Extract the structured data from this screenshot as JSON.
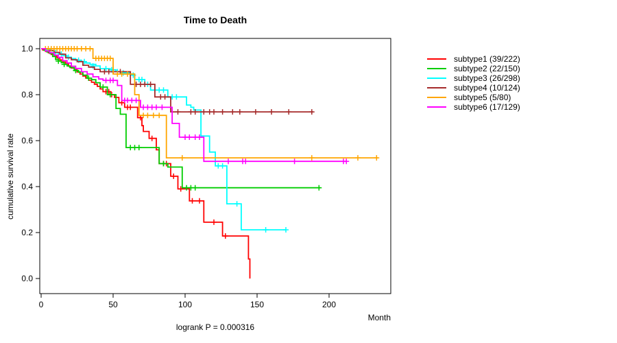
{
  "window": {
    "background": "#FFFFFF",
    "text_color": "#000000"
  },
  "chart_data": {
    "type": "line",
    "subtype": "kaplan-meier-survival-steps",
    "title": "Time to Death",
    "xlabel": "Month",
    "ylabel": "cumulative survival rate",
    "annotation": "logrank P = 0.000316",
    "grid": "off",
    "legend_position": "right-outside",
    "xlim": [
      0,
      243
    ],
    "ylim": [
      0.0,
      1.0
    ],
    "x_ticks": [
      0,
      50,
      100,
      150,
      200
    ],
    "x_tick_labels": [
      "0",
      "50",
      "100",
      "150",
      "200"
    ],
    "y_ticks": [
      1.0,
      0.8,
      0.6,
      0.4,
      0.2,
      0.0
    ],
    "y_tick_labels": [
      "1.0",
      "0.8",
      "0.6",
      "0.4",
      "0.2",
      "0.0"
    ],
    "series": [
      {
        "name": "subtype1 (39/222)",
        "color": "#FF0000",
        "end_month": 145,
        "steps": [
          [
            0,
            1.0
          ],
          [
            1,
            0.995
          ],
          [
            3,
            0.988
          ],
          [
            5,
            0.982
          ],
          [
            7,
            0.975
          ],
          [
            9,
            0.968
          ],
          [
            11,
            0.96
          ],
          [
            13,
            0.951
          ],
          [
            15,
            0.942
          ],
          [
            17,
            0.933
          ],
          [
            19,
            0.924
          ],
          [
            21,
            0.916
          ],
          [
            23,
            0.908
          ],
          [
            25,
            0.899
          ],
          [
            27,
            0.89
          ],
          [
            29,
            0.881
          ],
          [
            31,
            0.872
          ],
          [
            33,
            0.863
          ],
          [
            35,
            0.854
          ],
          [
            37,
            0.845
          ],
          [
            39,
            0.836
          ],
          [
            41,
            0.825
          ],
          [
            43,
            0.813
          ],
          [
            48,
            0.8
          ],
          [
            51,
            0.788
          ],
          [
            54,
            0.765
          ],
          [
            58,
            0.745
          ],
          [
            67,
            0.7
          ],
          [
            70,
            0.665
          ],
          [
            71,
            0.64
          ],
          [
            75,
            0.61
          ],
          [
            80,
            0.56
          ],
          [
            82,
            0.5
          ],
          [
            90,
            0.445
          ],
          [
            95,
            0.39
          ],
          [
            103,
            0.338
          ],
          [
            113,
            0.245
          ],
          [
            126,
            0.185
          ],
          [
            144,
            0.085
          ],
          [
            145,
            0.0
          ]
        ],
        "censors": [
          [
            45,
            0.813
          ],
          [
            47,
            0.813
          ],
          [
            49,
            0.8
          ],
          [
            56,
            0.765
          ],
          [
            60,
            0.745
          ],
          [
            62,
            0.745
          ],
          [
            69,
            0.7
          ],
          [
            77,
            0.61
          ],
          [
            85,
            0.5
          ],
          [
            87,
            0.5
          ],
          [
            92,
            0.445
          ],
          [
            97,
            0.39
          ],
          [
            105,
            0.338
          ],
          [
            110,
            0.338
          ],
          [
            120,
            0.245
          ],
          [
            128,
            0.185
          ]
        ]
      },
      {
        "name": "subtype2 (22/150)",
        "color": "#00CD00",
        "end_month": 194,
        "steps": [
          [
            0,
            1.0
          ],
          [
            2,
            0.993
          ],
          [
            4,
            0.986
          ],
          [
            6,
            0.979
          ],
          [
            8,
            0.966
          ],
          [
            10,
            0.953
          ],
          [
            12,
            0.946
          ],
          [
            14,
            0.939
          ],
          [
            16,
            0.932
          ],
          [
            18,
            0.925
          ],
          [
            20,
            0.918
          ],
          [
            23,
            0.905
          ],
          [
            26,
            0.898
          ],
          [
            29,
            0.885
          ],
          [
            32,
            0.872
          ],
          [
            35,
            0.865
          ],
          [
            38,
            0.852
          ],
          [
            41,
            0.833
          ],
          [
            46,
            0.8
          ],
          [
            52,
            0.74
          ],
          [
            55,
            0.715
          ],
          [
            59,
            0.57
          ],
          [
            82,
            0.5
          ],
          [
            88,
            0.485
          ],
          [
            98,
            0.395
          ]
        ],
        "censors": [
          [
            12,
            0.946
          ],
          [
            16,
            0.932
          ],
          [
            24,
            0.905
          ],
          [
            33,
            0.872
          ],
          [
            43,
            0.833
          ],
          [
            48,
            0.8
          ],
          [
            62,
            0.57
          ],
          [
            65,
            0.57
          ],
          [
            68,
            0.57
          ],
          [
            85,
            0.5
          ],
          [
            101,
            0.395
          ],
          [
            104,
            0.395
          ],
          [
            107,
            0.395
          ],
          [
            193,
            0.395
          ]
        ]
      },
      {
        "name": "subtype3 (26/298)",
        "color": "#00FFFF",
        "end_month": 170,
        "steps": [
          [
            0,
            1.0
          ],
          [
            4,
            0.995
          ],
          [
            7,
            0.99
          ],
          [
            9,
            0.983
          ],
          [
            12,
            0.977
          ],
          [
            15,
            0.97
          ],
          [
            18,
            0.963
          ],
          [
            21,
            0.957
          ],
          [
            24,
            0.95
          ],
          [
            28,
            0.944
          ],
          [
            31,
            0.938
          ],
          [
            34,
            0.932
          ],
          [
            38,
            0.925
          ],
          [
            41,
            0.913
          ],
          [
            48,
            0.908
          ],
          [
            52,
            0.9
          ],
          [
            58,
            0.895
          ],
          [
            62,
            0.885
          ],
          [
            65,
            0.866
          ],
          [
            72,
            0.845
          ],
          [
            76,
            0.82
          ],
          [
            88,
            0.79
          ],
          [
            101,
            0.755
          ],
          [
            104,
            0.745
          ],
          [
            106,
            0.733
          ],
          [
            111,
            0.62
          ],
          [
            117,
            0.55
          ],
          [
            121,
            0.49
          ],
          [
            129,
            0.325
          ],
          [
            139,
            0.212
          ]
        ],
        "censors": [
          [
            10,
            0.983
          ],
          [
            14,
            0.977
          ],
          [
            19,
            0.963
          ],
          [
            26,
            0.95
          ],
          [
            30,
            0.944
          ],
          [
            36,
            0.925
          ],
          [
            45,
            0.913
          ],
          [
            49,
            0.908
          ],
          [
            53,
            0.9
          ],
          [
            57,
            0.895
          ],
          [
            64,
            0.885
          ],
          [
            68,
            0.866
          ],
          [
            70,
            0.866
          ],
          [
            74,
            0.845
          ],
          [
            79,
            0.82
          ],
          [
            82,
            0.82
          ],
          [
            85,
            0.82
          ],
          [
            91,
            0.79
          ],
          [
            94,
            0.79
          ],
          [
            123,
            0.49
          ],
          [
            126,
            0.49
          ],
          [
            136,
            0.325
          ],
          [
            156,
            0.212
          ],
          [
            170,
            0.212
          ]
        ]
      },
      {
        "name": "subtype4 (10/124)",
        "color": "#A52A2A",
        "end_month": 189,
        "steps": [
          [
            0,
            1.0
          ],
          [
            5,
            0.992
          ],
          [
            9,
            0.984
          ],
          [
            13,
            0.976
          ],
          [
            17,
            0.96
          ],
          [
            21,
            0.952
          ],
          [
            25,
            0.944
          ],
          [
            29,
            0.928
          ],
          [
            33,
            0.92
          ],
          [
            37,
            0.91
          ],
          [
            41,
            0.9
          ],
          [
            62,
            0.845
          ],
          [
            79,
            0.79
          ],
          [
            90,
            0.725
          ]
        ],
        "censors": [
          [
            44,
            0.9
          ],
          [
            47,
            0.9
          ],
          [
            50,
            0.9
          ],
          [
            55,
            0.9
          ],
          [
            66,
            0.845
          ],
          [
            69,
            0.845
          ],
          [
            72,
            0.845
          ],
          [
            76,
            0.845
          ],
          [
            83,
            0.79
          ],
          [
            86,
            0.79
          ],
          [
            95,
            0.725
          ],
          [
            104,
            0.725
          ],
          [
            107,
            0.725
          ],
          [
            113,
            0.725
          ],
          [
            117,
            0.725
          ],
          [
            120,
            0.725
          ],
          [
            126,
            0.725
          ],
          [
            133,
            0.725
          ],
          [
            138,
            0.725
          ],
          [
            149,
            0.725
          ],
          [
            160,
            0.725
          ],
          [
            172,
            0.725
          ],
          [
            188,
            0.725
          ]
        ]
      },
      {
        "name": "subtype5 (5/80)",
        "color": "#FFA500",
        "end_month": 234,
        "steps": [
          [
            0,
            1.0
          ],
          [
            36,
            0.958
          ],
          [
            50,
            0.89
          ],
          [
            65,
            0.8
          ],
          [
            68,
            0.71
          ],
          [
            87,
            0.525
          ]
        ],
        "censors": [
          [
            3,
            1.0
          ],
          [
            5,
            1.0
          ],
          [
            7,
            1.0
          ],
          [
            9,
            1.0
          ],
          [
            11,
            1.0
          ],
          [
            13,
            1.0
          ],
          [
            15,
            1.0
          ],
          [
            17,
            1.0
          ],
          [
            19,
            1.0
          ],
          [
            21,
            1.0
          ],
          [
            23,
            1.0
          ],
          [
            25,
            1.0
          ],
          [
            28,
            1.0
          ],
          [
            31,
            1.0
          ],
          [
            34,
            1.0
          ],
          [
            38,
            0.958
          ],
          [
            40,
            0.958
          ],
          [
            42,
            0.958
          ],
          [
            44,
            0.958
          ],
          [
            46,
            0.958
          ],
          [
            48,
            0.958
          ],
          [
            53,
            0.89
          ],
          [
            56,
            0.89
          ],
          [
            60,
            0.89
          ],
          [
            71,
            0.71
          ],
          [
            74,
            0.71
          ],
          [
            78,
            0.71
          ],
          [
            82,
            0.71
          ],
          [
            98,
            0.525
          ],
          [
            188,
            0.525
          ],
          [
            220,
            0.525
          ],
          [
            233,
            0.525
          ]
        ]
      },
      {
        "name": "subtype6 (17/129)",
        "color": "#FF00FF",
        "end_month": 212,
        "steps": [
          [
            0,
            1.0
          ],
          [
            3,
            0.99
          ],
          [
            6,
            0.982
          ],
          [
            9,
            0.972
          ],
          [
            12,
            0.962
          ],
          [
            15,
            0.948
          ],
          [
            18,
            0.938
          ],
          [
            21,
            0.924
          ],
          [
            24,
            0.914
          ],
          [
            28,
            0.9
          ],
          [
            32,
            0.89
          ],
          [
            36,
            0.878
          ],
          [
            40,
            0.868
          ],
          [
            43,
            0.862
          ],
          [
            53,
            0.84
          ],
          [
            56,
            0.775
          ],
          [
            69,
            0.745
          ],
          [
            91,
            0.675
          ],
          [
            96,
            0.615
          ],
          [
            113,
            0.51
          ]
        ],
        "censors": [
          [
            45,
            0.862
          ],
          [
            48,
            0.862
          ],
          [
            50,
            0.862
          ],
          [
            58,
            0.775
          ],
          [
            60,
            0.775
          ],
          [
            63,
            0.775
          ],
          [
            66,
            0.775
          ],
          [
            71,
            0.745
          ],
          [
            74,
            0.745
          ],
          [
            77,
            0.745
          ],
          [
            80,
            0.745
          ],
          [
            84,
            0.745
          ],
          [
            100,
            0.615
          ],
          [
            103,
            0.615
          ],
          [
            107,
            0.615
          ],
          [
            110,
            0.615
          ],
          [
            130,
            0.51
          ],
          [
            140,
            0.51
          ],
          [
            142,
            0.51
          ],
          [
            176,
            0.51
          ],
          [
            210,
            0.51
          ],
          [
            212,
            0.51
          ]
        ]
      }
    ]
  }
}
